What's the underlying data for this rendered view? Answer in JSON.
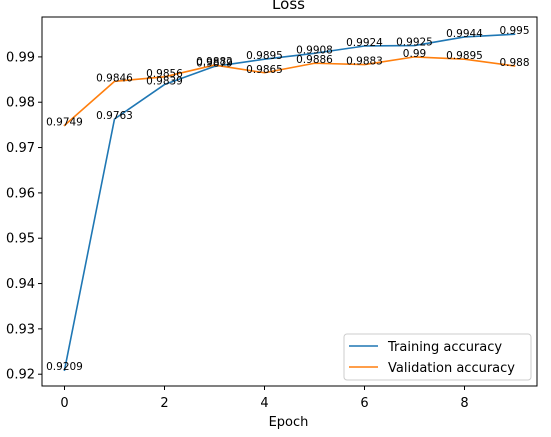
{
  "chart_data": {
    "type": "line",
    "title": "Loss",
    "xlabel": "Epoch",
    "ylabel": "",
    "xlim": [
      -0.45,
      9.45
    ],
    "ylim": [
      0.9174,
      0.9988
    ],
    "xticks": [
      0,
      2,
      4,
      6,
      8
    ],
    "yticks": [
      0.92,
      0.93,
      0.94,
      0.95,
      0.96,
      0.97,
      0.98,
      0.99
    ],
    "grid": false,
    "legend_position": "lower-right",
    "x": [
      0,
      1,
      2,
      3,
      4,
      5,
      6,
      7,
      8,
      9
    ],
    "series": [
      {
        "name": "Training accuracy",
        "color": "#1f77b4",
        "values": [
          0.9209,
          0.9763,
          0.9839,
          0.9879,
          0.9895,
          0.9908,
          0.9924,
          0.9925,
          0.9944,
          0.995
        ],
        "labels": [
          "0.9209",
          "0.9763",
          "0.9839",
          "0.9879",
          "0.9895",
          "0.9908",
          "0.9924",
          "0.9925",
          "0.9944",
          "0.995"
        ]
      },
      {
        "name": "Validation accuracy",
        "color": "#ff7f0e",
        "values": [
          0.9749,
          0.9846,
          0.9856,
          0.9882,
          0.9865,
          0.9886,
          0.9883,
          0.99,
          0.9895,
          0.988
        ],
        "labels": [
          "0.9749",
          "0.9846",
          "0.9856",
          "0.9882",
          "0.9865",
          "0.9886",
          "0.9883",
          "0.99",
          "0.9895",
          "0.988"
        ]
      }
    ]
  }
}
